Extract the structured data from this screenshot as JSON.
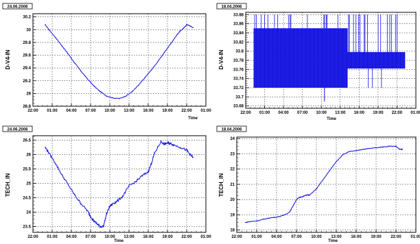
{
  "colors": {
    "series": "#1010e0",
    "frame": "#000000",
    "grid": "#000000",
    "background": "#ffffff"
  },
  "chart_data": [
    {
      "type": "line",
      "title": "24.06.2006",
      "ylabel": "D-V4-IN",
      "xlabel": "Time",
      "ylim": [
        28.8,
        30.25
      ],
      "xlim": [
        22.0,
        49.0
      ],
      "x_ticks": [
        22,
        25,
        28,
        31,
        34,
        37,
        40,
        43,
        46,
        49
      ],
      "x_tick_labels": [
        "22:00",
        "01:00",
        "04:00",
        "07:00",
        "10:00",
        "13:00",
        "16:00",
        "19:00",
        "22:00",
        "01:00"
      ],
      "y_ticks": [
        28.8,
        29.0,
        29.2,
        29.4,
        29.6,
        29.8,
        30.0,
        30.2
      ],
      "y_tick_labels": [
        "28.8",
        "29",
        "29.2",
        "29.4",
        "29.6",
        "29.8",
        "30",
        "30.2"
      ],
      "grid": true,
      "series": [
        {
          "x": [
            23.9,
            24.5,
            25.5,
            26.5,
            27.5,
            28.5,
            29.5,
            30.5,
            31.5,
            32.5,
            33.5,
            34.5,
            35.5,
            36.5,
            37.5,
            38.5,
            39.5,
            40.5,
            41.5,
            42.5,
            43.5,
            44.5,
            45.0,
            45.5,
            46.0,
            46.5,
            47.0
          ],
          "y": [
            30.08,
            30.0,
            29.88,
            29.75,
            29.62,
            29.48,
            29.35,
            29.23,
            29.12,
            29.03,
            28.96,
            28.93,
            28.92,
            28.96,
            29.03,
            29.13,
            29.25,
            29.37,
            29.5,
            29.64,
            29.78,
            29.92,
            29.98,
            30.02,
            30.08,
            30.06,
            30.03
          ]
        }
      ]
    },
    {
      "type": "line",
      "title": "18.04.2006",
      "ylabel": "D-V4-IN",
      "xlabel": "Time",
      "ylim": [
        33.675,
        33.885
      ],
      "xlim": [
        22.0,
        49.0
      ],
      "x_ticks": [
        22,
        25,
        28,
        31,
        34,
        37,
        40,
        43,
        46,
        49
      ],
      "x_tick_labels": [
        "22:00",
        "01:00",
        "04:00",
        "07:00",
        "10:00",
        "13:00",
        "16:00",
        "19:00",
        "22:00",
        "01:00"
      ],
      "y_ticks": [
        33.68,
        33.7,
        33.72,
        33.74,
        33.76,
        33.78,
        33.8,
        33.82,
        33.84,
        33.86,
        33.88
      ],
      "y_tick_labels": [
        "33.68",
        "33.7",
        "33.72",
        "33.74",
        "33.76",
        "33.78",
        "33.8",
        "33.82",
        "33.84",
        "33.86",
        "33.88"
      ],
      "grid": true,
      "series": [
        {
          "x": [
            23.3,
            47.3
          ],
          "y_low": 33.72,
          "y_high": 33.85,
          "y_mid": 33.78,
          "spikes_high": 33.88,
          "min_value": 33.69,
          "min_at": 34.5
        }
      ]
    },
    {
      "type": "line",
      "title": "24.06.2006",
      "ylabel": "TECH_IN",
      "xlabel": "Time",
      "ylim": [
        23.3,
        26.65
      ],
      "xlim": [
        22.0,
        49.0
      ],
      "x_ticks": [
        22,
        25,
        28,
        31,
        34,
        37,
        40,
        43,
        46,
        49
      ],
      "x_tick_labels": [
        "22:00",
        "01:00",
        "04:00",
        "07:00",
        "10:00",
        "13:00",
        "16:00",
        "19:00",
        "22:00",
        "01:00"
      ],
      "y_ticks": [
        23.5,
        24.0,
        24.5,
        25.0,
        25.5,
        26.0,
        26.5
      ],
      "y_tick_labels": [
        "23.5",
        "24",
        "24.5",
        "25",
        "25.5",
        "26",
        "26.5"
      ],
      "grid": true,
      "series": [
        {
          "x": [
            23.9,
            24.5,
            25.5,
            26.5,
            27.5,
            28.5,
            29.5,
            30.5,
            31.0,
            31.5,
            32.0,
            32.5,
            33.0,
            33.5,
            34.0,
            34.5,
            35.0,
            36.0,
            37.0,
            38.0,
            39.0,
            40.0,
            40.5,
            41.0,
            42.0,
            42.5,
            43.0,
            43.5,
            44.0,
            45.0,
            46.0,
            46.5,
            47.0
          ],
          "y": [
            26.25,
            26.05,
            25.7,
            25.3,
            24.95,
            24.6,
            24.3,
            24.05,
            23.85,
            23.7,
            23.6,
            23.5,
            23.5,
            23.95,
            24.2,
            24.3,
            24.35,
            24.55,
            24.9,
            25.05,
            25.25,
            25.4,
            25.7,
            26.05,
            26.45,
            26.35,
            26.4,
            26.38,
            26.33,
            26.25,
            26.15,
            26.0,
            25.9
          ]
        }
      ]
    },
    {
      "type": "line",
      "title": "18.04.2006",
      "ylabel": "TECH_IN",
      "xlabel": "Time",
      "ylim": [
        17.85,
        24.1
      ],
      "xlim": [
        22.0,
        49.0
      ],
      "x_ticks": [
        22,
        25,
        28,
        31,
        34,
        37,
        40,
        43,
        46,
        49
      ],
      "x_tick_labels": [
        "22:00",
        "01:00",
        "04:00",
        "07:00",
        "10:00",
        "13:00",
        "16:00",
        "19:00",
        "22:00",
        "01:00"
      ],
      "y_ticks": [
        18,
        19,
        20,
        21,
        22,
        23,
        24
      ],
      "y_tick_labels": [
        "18",
        "19",
        "20",
        "21",
        "22",
        "23",
        "24"
      ],
      "grid": true,
      "series": [
        {
          "x": [
            23.3,
            24.0,
            25.0,
            26.0,
            27.0,
            28.0,
            29.0,
            30.0,
            30.5,
            31.0,
            31.5,
            32.0,
            32.5,
            33.0,
            34.0,
            35.0,
            36.0,
            37.0,
            38.0,
            39.0,
            40.0,
            41.0,
            42.0,
            43.0,
            44.0,
            45.0,
            46.0,
            46.5,
            47.0
          ],
          "y": [
            18.5,
            18.55,
            18.6,
            18.7,
            18.8,
            18.85,
            18.95,
            19.2,
            19.6,
            20.0,
            20.15,
            20.2,
            20.3,
            20.3,
            20.7,
            21.3,
            21.9,
            22.5,
            22.95,
            23.15,
            23.2,
            23.3,
            23.35,
            23.4,
            23.45,
            23.5,
            23.5,
            23.3,
            23.3
          ]
        }
      ]
    }
  ]
}
